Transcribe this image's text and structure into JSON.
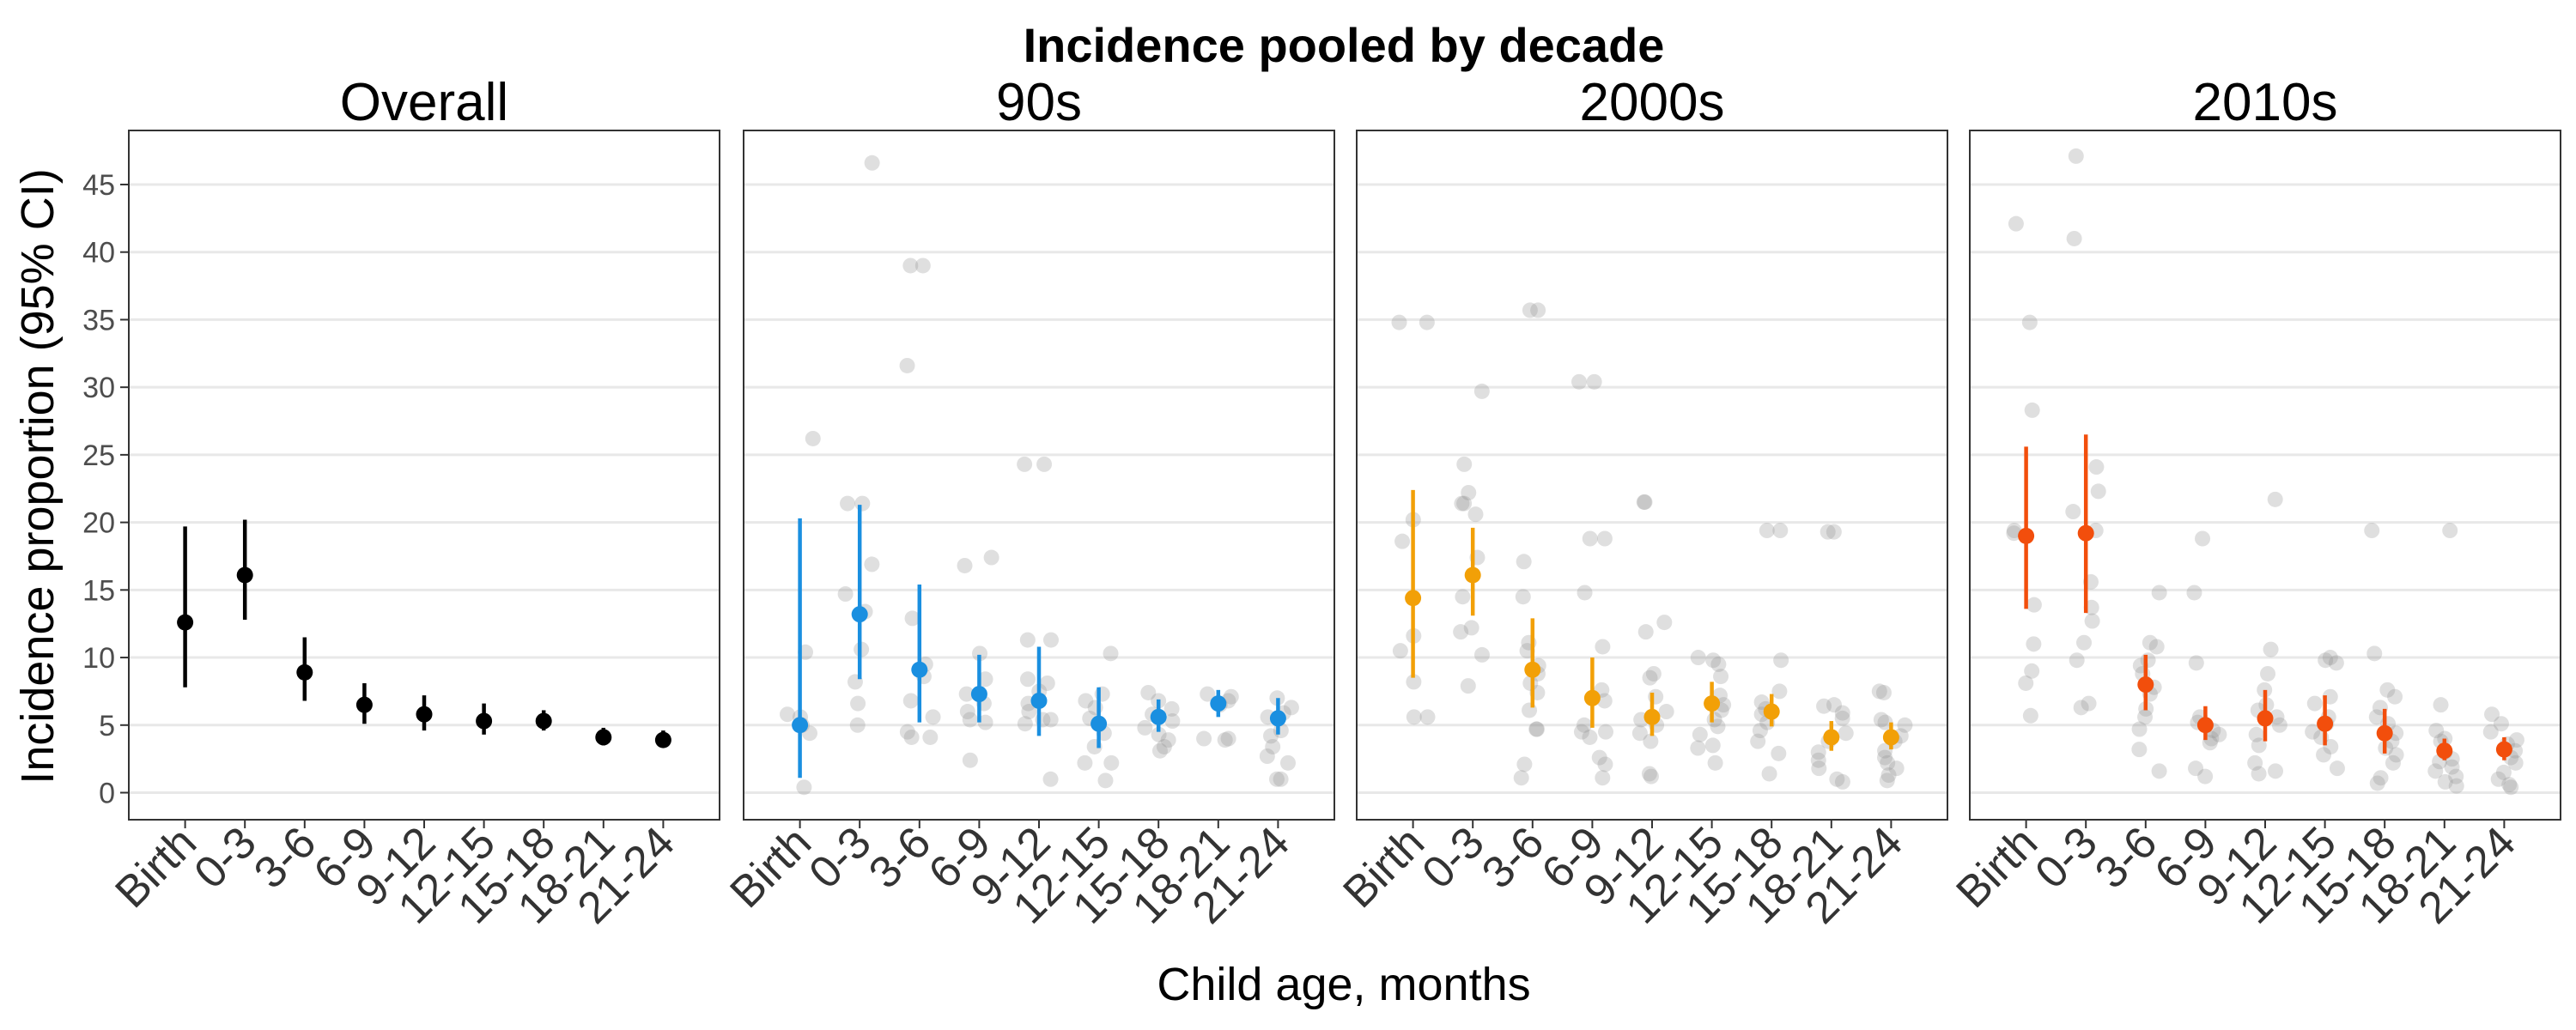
{
  "chart_data": {
    "type": "scatter",
    "title": "Incidence pooled by decade",
    "xlabel": "Child age, months",
    "ylabel": "Incidence proportion (95% CI)",
    "categories": [
      "Birth",
      "0-3",
      "3-6",
      "6-9",
      "9-12",
      "12-15",
      "15-18",
      "18-21",
      "21-24"
    ],
    "ylim": [
      -2,
      49
    ],
    "yticks": [
      0,
      5,
      10,
      15,
      20,
      25,
      30,
      35,
      40,
      45
    ],
    "grid": true,
    "legend": "none",
    "panels": [
      {
        "title": "Overall",
        "color": "#000000",
        "pooled": [
          {
            "category": "Birth",
            "estimate": 12.6,
            "ci_low": 7.8,
            "ci_high": 19.7
          },
          {
            "category": "0-3",
            "estimate": 16.1,
            "ci_low": 12.8,
            "ci_high": 20.2
          },
          {
            "category": "3-6",
            "estimate": 8.9,
            "ci_low": 6.8,
            "ci_high": 11.5
          },
          {
            "category": "6-9",
            "estimate": 6.5,
            "ci_low": 5.1,
            "ci_high": 8.1
          },
          {
            "category": "9-12",
            "estimate": 5.8,
            "ci_low": 4.6,
            "ci_high": 7.2
          },
          {
            "category": "12-15",
            "estimate": 5.3,
            "ci_low": 4.3,
            "ci_high": 6.6
          },
          {
            "category": "15-18",
            "estimate": 5.3,
            "ci_low": 4.6,
            "ci_high": 6.1
          },
          {
            "category": "18-21",
            "estimate": 4.1,
            "ci_low": 3.5,
            "ci_high": 4.8
          },
          {
            "category": "21-24",
            "estimate": 3.9,
            "ci_low": 3.4,
            "ci_high": 4.6
          }
        ],
        "studies": []
      },
      {
        "title": "90s",
        "color": "#1a8fe0",
        "pooled": [
          {
            "category": "Birth",
            "estimate": 5.0,
            "ci_low": 1.1,
            "ci_high": 20.3
          },
          {
            "category": "0-3",
            "estimate": 13.2,
            "ci_low": 8.4,
            "ci_high": 21.3
          },
          {
            "category": "3-6",
            "estimate": 9.1,
            "ci_low": 5.2,
            "ci_high": 15.4
          },
          {
            "category": "6-9",
            "estimate": 7.3,
            "ci_low": 5.2,
            "ci_high": 10.2
          },
          {
            "category": "9-12",
            "estimate": 6.8,
            "ci_low": 4.2,
            "ci_high": 10.8
          },
          {
            "category": "12-15",
            "estimate": 5.1,
            "ci_low": 3.3,
            "ci_high": 7.8
          },
          {
            "category": "15-18",
            "estimate": 5.6,
            "ci_low": 4.5,
            "ci_high": 6.9
          },
          {
            "category": "18-21",
            "estimate": 6.6,
            "ci_low": 5.6,
            "ci_high": 7.6
          },
          {
            "category": "21-24",
            "estimate": 5.5,
            "ci_low": 4.3,
            "ci_high": 7.0
          }
        ],
        "studies": [
          [
            26.2,
            10.4,
            5.8,
            5.6,
            5.0,
            4.4,
            0.4
          ],
          [
            46.6,
            21.4,
            21.4,
            16.9,
            14.7,
            13.4,
            10.6,
            8.2,
            6.6,
            5.0
          ],
          [
            39.0,
            39.0,
            31.6,
            12.9,
            9.5,
            8.6,
            6.8,
            5.6,
            4.5,
            4.1,
            4.1
          ],
          [
            17.4,
            16.8,
            10.3,
            8.4,
            7.3,
            6.6,
            6.0,
            5.4,
            5.2,
            2.4
          ],
          [
            24.3,
            24.3,
            11.3,
            11.3,
            8.4,
            8.1,
            7.5,
            6.6,
            6.0,
            5.4,
            5.4,
            5.1,
            1.0
          ],
          [
            10.3,
            7.3,
            6.8,
            6.3,
            5.5,
            4.4,
            3.4,
            2.2,
            2.2,
            0.9
          ],
          [
            7.4,
            6.8,
            6.2,
            5.8,
            5.3,
            4.8,
            4.3,
            3.9,
            3.4,
            3.1
          ],
          [
            7.3,
            7.1,
            6.8,
            6.5,
            4.0,
            4.0,
            3.9
          ],
          [
            7.0,
            6.3,
            5.9,
            5.6,
            4.6,
            4.2,
            3.4,
            2.7,
            2.2,
            1.0,
            1.0
          ]
        ]
      },
      {
        "title": "2000s",
        "color": "#f2a007",
        "pooled": [
          {
            "category": "Birth",
            "estimate": 14.4,
            "ci_low": 8.5,
            "ci_high": 22.4
          },
          {
            "category": "0-3",
            "estimate": 16.1,
            "ci_low": 13.1,
            "ci_high": 19.6
          },
          {
            "category": "3-6",
            "estimate": 9.1,
            "ci_low": 6.3,
            "ci_high": 12.9
          },
          {
            "category": "6-9",
            "estimate": 7.0,
            "ci_low": 4.8,
            "ci_high": 10.0
          },
          {
            "category": "9-12",
            "estimate": 5.6,
            "ci_low": 4.2,
            "ci_high": 7.4
          },
          {
            "category": "12-15",
            "estimate": 6.6,
            "ci_low": 5.2,
            "ci_high": 8.2
          },
          {
            "category": "15-18",
            "estimate": 6.0,
            "ci_low": 4.9,
            "ci_high": 7.3
          },
          {
            "category": "18-21",
            "estimate": 4.1,
            "ci_low": 3.1,
            "ci_high": 5.3
          },
          {
            "category": "21-24",
            "estimate": 4.1,
            "ci_low": 3.2,
            "ci_high": 5.2
          }
        ],
        "studies": [
          [
            34.8,
            34.8,
            20.2,
            18.6,
            11.6,
            10.5,
            8.2,
            5.6,
            5.6
          ],
          [
            29.7,
            24.3,
            22.2,
            21.4,
            21.4,
            20.6,
            17.4,
            14.5,
            12.2,
            11.9,
            10.2,
            7.9
          ],
          [
            35.7,
            35.7,
            17.1,
            14.5,
            11.1,
            10.5,
            9.4,
            8.8,
            8.1,
            7.4,
            6.1,
            4.7,
            4.7,
            2.1,
            1.1
          ],
          [
            30.4,
            30.4,
            18.8,
            18.8,
            14.8,
            10.8,
            7.6,
            6.8,
            5.0,
            4.5,
            4.5,
            4.1,
            2.6,
            2.1,
            1.1
          ],
          [
            21.5,
            21.5,
            12.6,
            11.9,
            8.8,
            8.5,
            7.1,
            6.0,
            5.4,
            5.0,
            4.4,
            3.8,
            1.4,
            1.2
          ],
          [
            10.0,
            9.8,
            9.5,
            8.6,
            7.2,
            6.5,
            6.1,
            5.4,
            4.9,
            4.3,
            3.5,
            3.3,
            2.2
          ],
          [
            19.4,
            19.4,
            9.8,
            7.5,
            6.7,
            6.2,
            5.8,
            5.2,
            4.6,
            3.8,
            2.9,
            1.4
          ],
          [
            19.3,
            19.3,
            6.5,
            6.4,
            5.9,
            5.5,
            4.4,
            3.8,
            3.0,
            2.4,
            1.8,
            1.0,
            0.8
          ],
          [
            7.5,
            7.4,
            5.4,
            5.2,
            5.0,
            4.2,
            3.8,
            3.1,
            2.6,
            2.2,
            1.8,
            1.3,
            0.9
          ]
        ]
      },
      {
        "title": "2010s",
        "color": "#f24e0c",
        "pooled": [
          {
            "category": "Birth",
            "estimate": 19.0,
            "ci_low": 13.6,
            "ci_high": 25.6
          },
          {
            "category": "0-3",
            "estimate": 19.2,
            "ci_low": 13.3,
            "ci_high": 26.5
          },
          {
            "category": "3-6",
            "estimate": 8.0,
            "ci_low": 6.1,
            "ci_high": 10.2
          },
          {
            "category": "6-9",
            "estimate": 5.0,
            "ci_low": 3.9,
            "ci_high": 6.4
          },
          {
            "category": "9-12",
            "estimate": 5.5,
            "ci_low": 3.8,
            "ci_high": 7.6
          },
          {
            "category": "12-15",
            "estimate": 5.1,
            "ci_low": 3.5,
            "ci_high": 7.2
          },
          {
            "category": "15-18",
            "estimate": 4.4,
            "ci_low": 2.9,
            "ci_high": 6.2
          },
          {
            "category": "18-21",
            "estimate": 3.1,
            "ci_low": 2.4,
            "ci_high": 4.0
          },
          {
            "category": "21-24",
            "estimate": 3.2,
            "ci_low": 2.4,
            "ci_high": 4.1
          }
        ],
        "studies": [
          [
            42.1,
            34.8,
            28.3,
            19.4,
            19.2,
            13.9,
            11.0,
            9.0,
            8.1,
            5.7
          ],
          [
            47.1,
            41.0,
            24.1,
            22.3,
            20.8,
            19.4,
            15.6,
            13.7,
            12.7,
            11.1,
            9.8,
            6.6,
            6.3
          ],
          [
            14.8,
            11.1,
            10.8,
            9.8,
            9.4,
            8.8,
            7.8,
            7.3,
            6.2,
            5.6,
            4.7,
            3.2,
            1.6
          ],
          [
            18.8,
            14.8,
            9.6,
            5.6,
            5.2,
            4.6,
            4.3,
            4.0,
            3.7,
            1.8,
            1.2
          ],
          [
            21.7,
            10.6,
            8.8,
            7.6,
            6.5,
            6.1,
            5.6,
            5.0,
            4.3,
            3.5,
            2.2,
            1.6,
            1.4
          ],
          [
            10.0,
            9.8,
            9.6,
            7.1,
            6.6,
            5.6,
            5.1,
            4.5,
            4.1,
            3.4,
            2.8,
            1.8
          ],
          [
            19.4,
            10.3,
            7.6,
            7.1,
            6.3,
            5.6,
            5.1,
            4.4,
            3.8,
            3.3,
            2.8,
            2.2,
            1.1,
            0.7
          ],
          [
            19.4,
            6.5,
            4.6,
            4.0,
            3.8,
            3.0,
            2.5,
            2.3,
            1.9,
            1.6,
            1.2,
            0.8,
            0.5
          ],
          [
            5.8,
            5.1,
            4.5,
            3.9,
            3.6,
            3.1,
            2.6,
            2.2,
            1.5,
            1.0,
            0.6,
            0.4
          ]
        ]
      }
    ]
  }
}
